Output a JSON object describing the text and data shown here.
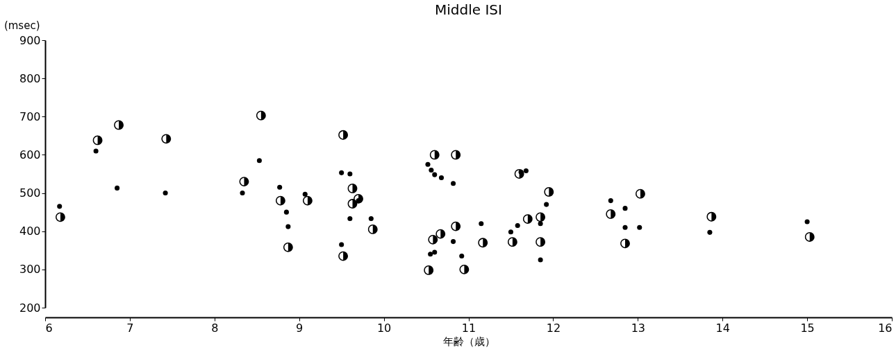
{
  "chart_data": {
    "type": "scatter",
    "title": "Middle ISI",
    "xlabel": "年齢（歳）",
    "ylabel": "(msec)",
    "xlim": [
      6,
      16
    ],
    "xticks": [
      6,
      7,
      8,
      9,
      10,
      11,
      12,
      13,
      14,
      15,
      16
    ],
    "ylim": [
      200,
      900
    ],
    "yticks": [
      200,
      300,
      400,
      500,
      600,
      700,
      800,
      900
    ],
    "grid": false,
    "legend": false,
    "marker": "circle",
    "series": [
      {
        "color": "#000000",
        "x": [
          6.17,
          6.6,
          6.85,
          7.42,
          8.33,
          8.53,
          8.77,
          8.85,
          8.87,
          9.07,
          9.5,
          9.6,
          9.5,
          9.6,
          9.7,
          9.85,
          10.52,
          10.56,
          10.6,
          10.68,
          10.82,
          10.55,
          10.6,
          10.82,
          10.92,
          11.15,
          11.5,
          11.58,
          11.62,
          11.68,
          11.85,
          11.85,
          11.92,
          12.68,
          12.85,
          12.85,
          13.02,
          13.85,
          15.0
        ],
        "values": [
          465,
          610,
          513,
          500,
          500,
          585,
          515,
          450,
          412,
          497,
          553,
          550,
          365,
          433,
          480,
          433,
          575,
          560,
          548,
          540,
          525,
          340,
          345,
          373,
          335,
          420,
          398,
          415,
          555,
          558,
          420,
          325,
          470,
          480,
          460,
          410,
          410,
          397,
          425
        ]
      },
      {
        "color": "#000000",
        "x": [
          6.18,
          6.62,
          6.87,
          7.43,
          8.35,
          8.55,
          8.78,
          8.87,
          9.1,
          9.52,
          9.52,
          9.63,
          9.63,
          9.7,
          9.87,
          10.53,
          10.58,
          10.6,
          10.67,
          10.85,
          10.85,
          10.95,
          11.17,
          11.52,
          11.6,
          11.7,
          11.85,
          11.85,
          11.95,
          12.68,
          12.85,
          13.03,
          13.87,
          15.03
        ],
        "values": [
          437,
          638,
          678,
          642,
          530,
          703,
          480,
          358,
          480,
          652,
          335,
          512,
          472,
          485,
          405,
          298,
          378,
          600,
          393,
          600,
          413,
          300,
          370,
          372,
          550,
          432,
          437,
          372,
          503,
          445,
          368,
          498,
          438,
          385
        ]
      }
    ]
  }
}
